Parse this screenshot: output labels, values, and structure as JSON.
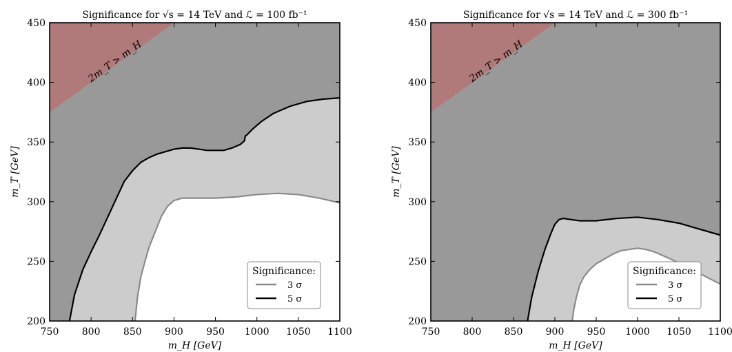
{
  "chart_data": [
    {
      "type": "area",
      "title": "Significance for √s = 14 TeV and ℒ = 100 fb⁻¹",
      "xlabel": "m_H [GeV]",
      "ylabel": "m_T [GeV]",
      "xlim": [
        750,
        1100
      ],
      "ylim": [
        200,
        450
      ],
      "xticks": [
        "750",
        "800",
        "850",
        "900",
        "950",
        "1000",
        "1050",
        "1100"
      ],
      "yticks": [
        "200",
        "250",
        "300",
        "350",
        "400",
        "450"
      ],
      "grid": false,
      "excluded_region_label": "2m_T > m_H",
      "excluded_region_color": "#b07a7a",
      "legend": {
        "title": "Significance:",
        "position": "lower-right",
        "entries": [
          {
            "label": "3 σ",
            "color": "#8a8a8a"
          },
          {
            "label": "5 σ",
            "color": "#000000"
          }
        ]
      },
      "series": [
        {
          "name": "3 σ",
          "color": "#8a8a8a",
          "x": [
            853,
            856,
            860,
            865,
            870,
            878,
            885,
            892,
            900,
            910,
            925,
            950,
            975,
            1000,
            1025,
            1050,
            1075,
            1100
          ],
          "y": [
            200,
            220,
            237,
            250,
            262,
            276,
            288,
            296,
            301,
            303,
            303,
            303,
            304,
            306,
            307,
            306,
            303,
            299
          ]
        },
        {
          "name": "5 σ",
          "color": "#000000",
          "x": [
            774,
            780,
            790,
            800,
            810,
            820,
            830,
            840,
            850,
            860,
            870,
            880,
            890,
            900,
            910,
            920,
            930,
            940,
            950,
            960,
            970,
            980,
            985,
            986,
            988,
            995,
            1005,
            1020,
            1040,
            1060,
            1080,
            1100
          ],
          "y": [
            200,
            222,
            243,
            258,
            272,
            287,
            302,
            317,
            326,
            333,
            337,
            340,
            342,
            344,
            345,
            345,
            344,
            343,
            343,
            343,
            345,
            348,
            351,
            355,
            356,
            361,
            367,
            374,
            380,
            384,
            386,
            387
          ]
        }
      ]
    },
    {
      "type": "area",
      "title": "Significance for √s = 14 TeV and ℒ = 300 fb⁻¹",
      "xlabel": "m_H [GeV]",
      "ylabel": "m_T [GeV]",
      "xlim": [
        750,
        1100
      ],
      "ylim": [
        200,
        450
      ],
      "xticks": [
        "750",
        "800",
        "850",
        "900",
        "950",
        "1000",
        "1050",
        "1100"
      ],
      "yticks": [
        "200",
        "250",
        "300",
        "350",
        "400",
        "450"
      ],
      "grid": false,
      "excluded_region_label": "2m_T > m_H",
      "excluded_region_color": "#b07a7a",
      "legend": {
        "title": "Significance:",
        "position": "lower-right",
        "entries": [
          {
            "label": "3 σ",
            "color": "#8a8a8a"
          },
          {
            "label": "5 σ",
            "color": "#000000"
          }
        ]
      },
      "series": [
        {
          "name": "3 σ",
          "color": "#8a8a8a",
          "x": [
            921,
            923,
            926,
            930,
            935,
            942,
            950,
            960,
            970,
            980,
            990,
            1000,
            1010,
            1020,
            1040,
            1060,
            1080,
            1100
          ],
          "y": [
            200,
            210,
            220,
            230,
            237,
            243,
            248,
            252,
            256,
            259,
            260,
            261,
            260,
            258,
            252,
            245,
            238,
            231
          ]
        },
        {
          "name": "5 σ",
          "color": "#000000",
          "x": [
            867,
            872,
            880,
            888,
            895,
            900,
            905,
            910,
            920,
            930,
            950,
            975,
            1000,
            1025,
            1050,
            1075,
            1100
          ],
          "y": [
            200,
            220,
            242,
            260,
            273,
            281,
            285,
            286,
            285,
            284,
            284,
            286,
            287,
            285,
            282,
            277,
            272
          ]
        }
      ]
    }
  ]
}
